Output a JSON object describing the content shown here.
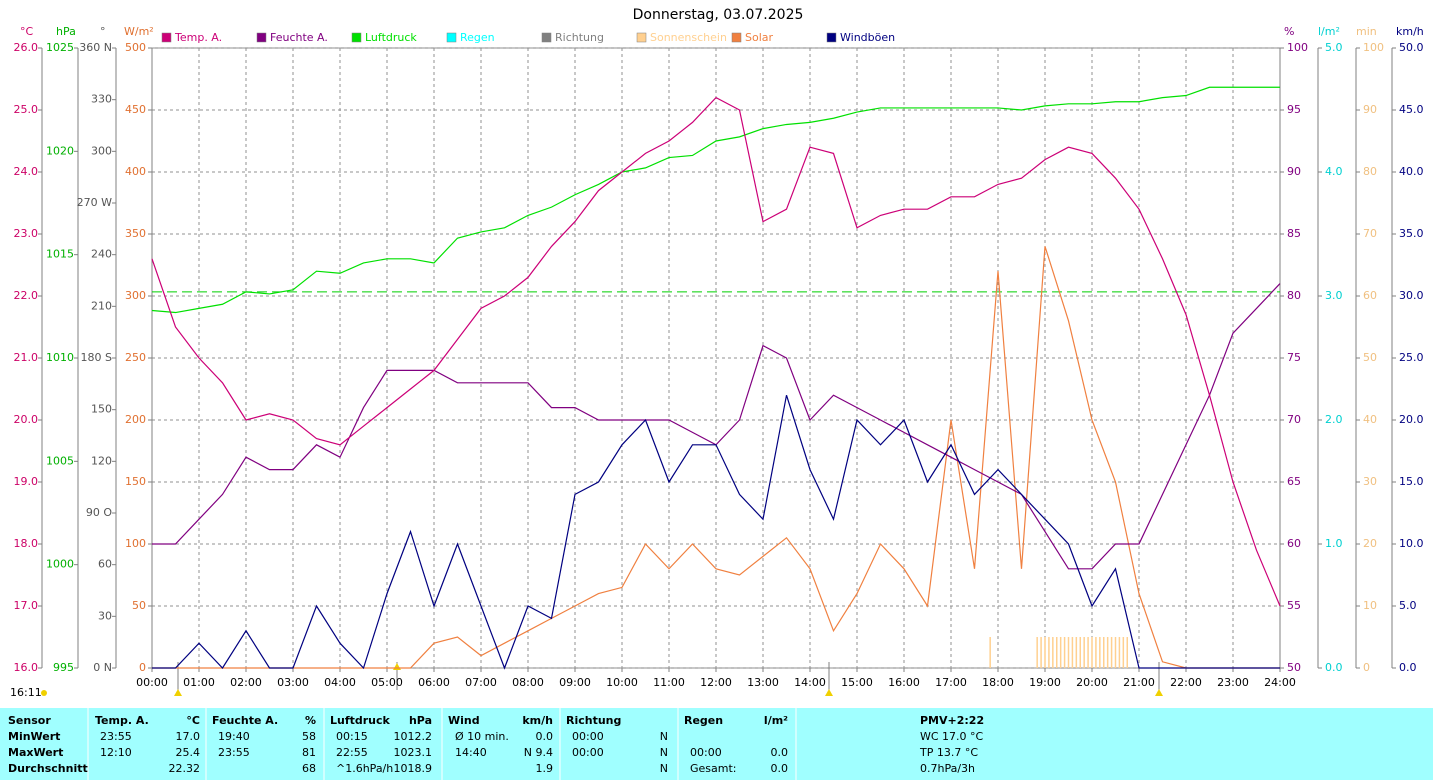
{
  "chart_data": {
    "type": "line",
    "title": "Donnerstag, 03.07.2025",
    "axes": [
      {
        "unit": "°C",
        "color": "#cc0066",
        "lim": [
          16,
          26
        ],
        "ticks": [
          {
            "value": 16,
            "label": "16.0"
          },
          {
            "value": 17,
            "label": "17.0"
          },
          {
            "value": 18,
            "label": "18.0"
          },
          {
            "value": 19,
            "label": "19.0"
          },
          {
            "value": 20,
            "label": "20.0"
          },
          {
            "value": 21,
            "label": "21.0"
          },
          {
            "value": 22,
            "label": "22.0"
          },
          {
            "value": 23,
            "label": "23.0"
          },
          {
            "value": 24,
            "label": "24.0"
          },
          {
            "value": 25,
            "label": "25.0"
          },
          {
            "value": 26,
            "label": "26.0"
          }
        ]
      },
      {
        "unit": "hPa",
        "color": "#00b000",
        "lim": [
          995,
          1025
        ],
        "ticks": [
          995,
          1000,
          1005,
          1010,
          1015,
          1020,
          1025
        ]
      },
      {
        "unit": "°",
        "color": "#555555",
        "lim": [
          0,
          360
        ],
        "ticks": [
          {
            "value": 0,
            "label": "0 N"
          },
          30,
          60,
          {
            "value": 90,
            "label": "90 O"
          },
          120,
          150,
          {
            "value": 180,
            "label": "180 S"
          },
          210,
          240,
          {
            "value": 270,
            "label": "270 W"
          },
          300,
          330,
          {
            "value": 360,
            "label": "360 N"
          }
        ]
      },
      {
        "unit": "W/m²",
        "color": "#e07030",
        "lim": [
          0,
          500
        ],
        "ticks": [
          0,
          50,
          100,
          150,
          200,
          250,
          300,
          350,
          400,
          450,
          500
        ]
      },
      {
        "unit": "%",
        "color": "#800080",
        "lim": [
          50,
          100
        ],
        "ticks": [
          50,
          55,
          60,
          65,
          70,
          75,
          80,
          85,
          90,
          95,
          100
        ]
      },
      {
        "unit": "l/m²",
        "color": "#00d0d0",
        "lim": [
          0,
          5
        ],
        "ticks": [
          {
            "value": 0,
            "label": "0.0"
          },
          {
            "value": 1,
            "label": "1.0"
          },
          {
            "value": 2,
            "label": "2.0"
          },
          {
            "value": 3,
            "label": "3.0"
          },
          {
            "value": 4,
            "label": "4.0"
          },
          {
            "value": 5,
            "label": "5.0"
          }
        ]
      },
      {
        "unit": "min",
        "color": "#f0c080",
        "lim": [
          0,
          100
        ],
        "ticks": [
          0,
          10,
          20,
          30,
          40,
          50,
          60,
          70,
          80,
          90,
          100
        ]
      },
      {
        "unit": "km/h",
        "color": "#000080",
        "lim": [
          0,
          50
        ],
        "ticks": [
          {
            "value": 0,
            "label": "0.0"
          },
          {
            "value": 5,
            "label": "5.0"
          },
          {
            "value": 10,
            "label": "10.0"
          },
          {
            "value": 15,
            "label": "15.0"
          },
          {
            "value": 20,
            "label": "20.0"
          },
          {
            "value": 25,
            "label": "25.0"
          },
          {
            "value": 30,
            "label": "30.0"
          },
          {
            "value": 35,
            "label": "35.0"
          },
          {
            "value": 40,
            "label": "40.0"
          },
          {
            "value": 45,
            "label": "45.0"
          },
          {
            "value": 50,
            "label": "50.0"
          }
        ]
      }
    ],
    "xticks": [
      "00:00",
      "01:00",
      "02:00",
      "03:00",
      "04:00",
      "05:00",
      "06:00",
      "07:00",
      "08:00",
      "09:00",
      "10:00",
      "11:00",
      "12:00",
      "13:00",
      "14:00",
      "15:00",
      "16:00",
      "17:00",
      "18:00",
      "19:00",
      "20:00",
      "21:00",
      "22:00",
      "23:00",
      "24:00"
    ],
    "x": [
      "00:00",
      "00:30",
      "01:00",
      "01:30",
      "02:00",
      "02:30",
      "03:00",
      "03:30",
      "04:00",
      "04:30",
      "05:00",
      "05:30",
      "06:00",
      "06:30",
      "07:00",
      "07:30",
      "08:00",
      "08:30",
      "09:00",
      "09:30",
      "10:00",
      "10:30",
      "11:00",
      "11:30",
      "12:00",
      "12:30",
      "13:00",
      "13:30",
      "14:00",
      "14:30",
      "15:00",
      "15:30",
      "16:00",
      "16:30",
      "17:00",
      "17:30",
      "18:00",
      "18:30",
      "19:00",
      "19:30",
      "20:00",
      "20:30",
      "21:00",
      "21:30",
      "22:00",
      "22:30",
      "23:00",
      "23:30",
      "24:00"
    ],
    "grid": true,
    "pressure_reference": 1013.2,
    "series": [
      {
        "name": "Temp. A.",
        "color": "#cc0077",
        "axis": 0,
        "values": [
          22.6,
          21.5,
          21.0,
          20.6,
          20.0,
          20.1,
          20.0,
          19.7,
          19.6,
          19.9,
          20.2,
          20.5,
          20.8,
          21.3,
          21.8,
          22.0,
          22.3,
          22.8,
          23.2,
          23.7,
          24.0,
          24.3,
          24.5,
          24.8,
          25.2,
          25.0,
          23.2,
          23.4,
          24.4,
          24.3,
          23.1,
          23.3,
          23.4,
          23.4,
          23.6,
          23.6,
          23.8,
          23.9,
          24.2,
          24.4,
          24.3,
          23.9,
          23.4,
          22.6,
          21.7,
          20.4,
          19.0,
          17.9,
          17.0
        ]
      },
      {
        "name": "Feuchte A.",
        "color": "#800080",
        "axis": 4,
        "values": [
          60,
          60,
          62,
          64,
          67,
          66,
          66,
          68,
          67,
          71,
          74,
          74,
          74,
          73,
          73,
          73,
          73,
          71,
          71,
          70,
          70,
          70,
          70,
          69,
          68,
          70,
          76,
          75,
          70,
          72,
          71,
          70,
          69,
          68,
          67,
          66,
          65,
          64,
          61,
          58,
          58,
          60,
          60,
          64,
          68,
          72,
          77,
          79,
          81
        ]
      },
      {
        "name": "Luftdruck",
        "color": "#00e000",
        "axis": 1,
        "values": [
          1012.3,
          1012.2,
          1012.4,
          1012.6,
          1013.2,
          1013.1,
          1013.3,
          1014.2,
          1014.1,
          1014.6,
          1014.8,
          1014.8,
          1014.6,
          1015.8,
          1016.1,
          1016.3,
          1016.9,
          1017.3,
          1017.9,
          1018.4,
          1019.0,
          1019.2,
          1019.7,
          1019.8,
          1020.5,
          1020.7,
          1021.1,
          1021.3,
          1021.4,
          1021.6,
          1021.9,
          1022.1,
          1022.1,
          1022.1,
          1022.1,
          1022.1,
          1022.1,
          1022.0,
          1022.2,
          1022.3,
          1022.3,
          1022.4,
          1022.4,
          1022.6,
          1022.7,
          1023.1,
          1023.1,
          1023.1,
          1023.1
        ]
      },
      {
        "name": "Regen",
        "color": "#00ffff",
        "axis": 5
      },
      {
        "name": "Richtung",
        "color": "#808080",
        "axis": 2
      },
      {
        "name": "Sonnenschein",
        "color": "#ffd090",
        "axis": 6,
        "x": [
          "17:50",
          "18:50",
          "18:55",
          "19:00",
          "19:05",
          "19:10",
          "19:15",
          "19:20",
          "19:25",
          "19:30",
          "19:35",
          "19:40",
          "19:45",
          "19:50",
          "19:55",
          "20:00",
          "20:05",
          "20:10",
          "20:15",
          "20:20",
          "20:25",
          "20:30",
          "20:35",
          "20:40",
          "20:45"
        ],
        "values": [
          5,
          5,
          5,
          5,
          5,
          5,
          5,
          5,
          5,
          5,
          5,
          5,
          5,
          5,
          5,
          5,
          5,
          5,
          5,
          5,
          5,
          5,
          5,
          5,
          5
        ]
      },
      {
        "name": "Solar",
        "color": "#f08040",
        "axis": 3,
        "values": [
          0,
          0,
          0,
          0,
          0,
          0,
          0,
          0,
          0,
          0,
          0,
          0,
          20,
          25,
          10,
          20,
          30,
          40,
          50,
          60,
          65,
          100,
          80,
          100,
          80,
          75,
          90,
          105,
          80,
          30,
          60,
          100,
          80,
          50,
          200,
          80,
          320,
          80,
          340,
          280,
          200,
          150,
          60,
          5,
          0,
          0,
          0,
          0,
          0
        ]
      },
      {
        "name": "Windböen",
        "color": "#000080",
        "axis": 7,
        "values": [
          0,
          0,
          2,
          0,
          3,
          0,
          0,
          5,
          2,
          0,
          6,
          11,
          5,
          10,
          5,
          0,
          5,
          4,
          14,
          15,
          18,
          20,
          15,
          18,
          18,
          14,
          12,
          22,
          16,
          12,
          20,
          18,
          20,
          15,
          18,
          14,
          16,
          14,
          12,
          10,
          5,
          8,
          0,
          0,
          0,
          0,
          0,
          0,
          0
        ]
      }
    ]
  },
  "footer_time": "16:11",
  "table": {
    "header": [
      "Sensor",
      "Temp. A.",
      "°C",
      "Feuchte A.",
      "%",
      "Luftdruck",
      "hPa",
      "Wind",
      "km/h",
      "Richtung",
      null,
      "Regen",
      "l/m²",
      "PMV+2:22"
    ],
    "rows": [
      [
        "MinWert",
        "23:55",
        "17.0",
        "19:40",
        "58",
        "00:15",
        "1012.2",
        "Ø 10 min.",
        "0.0",
        "00:00",
        "N",
        null,
        null,
        "WC 17.0 °C"
      ],
      [
        "MaxWert",
        "12:10",
        "25.4",
        "23:55",
        "81",
        "22:55",
        "1023.1",
        "14:40",
        "N 9.4",
        "00:00",
        "N",
        "00:00",
        "0.0",
        "TP 13.7 °C"
      ],
      [
        "Durchschnitt",
        null,
        "22.32",
        null,
        "68",
        "^1.6hPa/h",
        "1018.9",
        null,
        "1.9",
        null,
        "N",
        "Gesamt:",
        "0.0",
        "0.7hPa/3h"
      ]
    ]
  }
}
